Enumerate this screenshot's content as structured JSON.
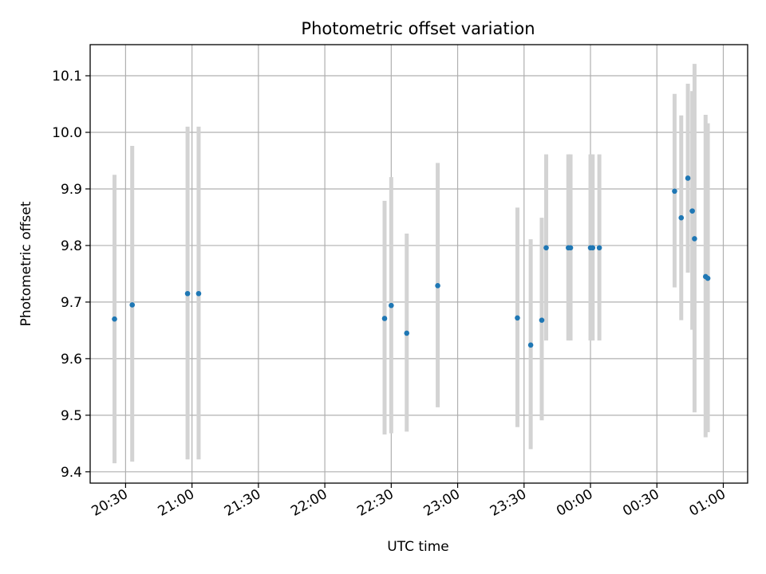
{
  "chart_data": {
    "type": "scatter",
    "title": "Photometric offset variation",
    "xlabel": "UTC time",
    "ylabel": "Photometric offset",
    "grid": true,
    "error_bar_color": "#d3d3d3",
    "point_color": "#1f77b4",
    "xlim": [
      "20:14",
      "01:11"
    ],
    "ylim": [
      9.38,
      10.155
    ],
    "x_ticks": [
      "20:30",
      "21:00",
      "21:30",
      "22:00",
      "22:30",
      "23:00",
      "23:30",
      "00:00",
      "00:30",
      "01:00"
    ],
    "y_ticks": [
      9.4,
      9.5,
      9.6,
      9.7,
      9.8,
      9.9,
      10.0,
      10.1
    ],
    "y_tick_labels": [
      "9.4",
      "9.5",
      "9.6",
      "9.7",
      "9.8",
      "9.9",
      "10.0",
      "10.1"
    ],
    "points": [
      {
        "time": "20:25",
        "y": 9.67,
        "ylow": 9.415,
        "yhigh": 9.925
      },
      {
        "time": "20:33",
        "y": 9.695,
        "ylow": 9.418,
        "yhigh": 9.976
      },
      {
        "time": "20:58",
        "y": 9.715,
        "ylow": 9.422,
        "yhigh": 10.01
      },
      {
        "time": "21:03",
        "y": 9.715,
        "ylow": 9.422,
        "yhigh": 10.01
      },
      {
        "time": "22:27",
        "y": 9.671,
        "ylow": 9.466,
        "yhigh": 9.879
      },
      {
        "time": "22:30",
        "y": 9.694,
        "ylow": 9.468,
        "yhigh": 9.921
      },
      {
        "time": "22:37",
        "y": 9.645,
        "ylow": 9.471,
        "yhigh": 9.821
      },
      {
        "time": "22:51",
        "y": 9.729,
        "ylow": 9.514,
        "yhigh": 9.946
      },
      {
        "time": "23:27",
        "y": 9.672,
        "ylow": 9.479,
        "yhigh": 9.867
      },
      {
        "time": "23:33",
        "y": 9.624,
        "ylow": 9.44,
        "yhigh": 9.811
      },
      {
        "time": "23:38",
        "y": 9.668,
        "ylow": 9.491,
        "yhigh": 9.849
      },
      {
        "time": "23:40",
        "y": 9.796,
        "ylow": 9.632,
        "yhigh": 9.961
      },
      {
        "time": "23:50",
        "y": 9.796,
        "ylow": 9.632,
        "yhigh": 9.961
      },
      {
        "time": "23:51",
        "y": 9.796,
        "ylow": 9.632,
        "yhigh": 9.961
      },
      {
        "time": "00:00",
        "y": 9.796,
        "ylow": 9.632,
        "yhigh": 9.961
      },
      {
        "time": "00:01",
        "y": 9.796,
        "ylow": 9.632,
        "yhigh": 9.961
      },
      {
        "time": "00:04",
        "y": 9.796,
        "ylow": 9.632,
        "yhigh": 9.961
      },
      {
        "time": "00:38",
        "y": 9.896,
        "ylow": 9.726,
        "yhigh": 10.068
      },
      {
        "time": "00:41",
        "y": 9.849,
        "ylow": 9.668,
        "yhigh": 10.03
      },
      {
        "time": "00:44",
        "y": 9.919,
        "ylow": 9.752,
        "yhigh": 10.086
      },
      {
        "time": "00:46",
        "y": 9.861,
        "ylow": 9.651,
        "yhigh": 10.073
      },
      {
        "time": "00:47",
        "y": 9.812,
        "ylow": 9.505,
        "yhigh": 10.121
      },
      {
        "time": "00:52",
        "y": 9.745,
        "ylow": 9.461,
        "yhigh": 10.031
      },
      {
        "time": "00:53",
        "y": 9.742,
        "ylow": 9.47,
        "yhigh": 10.016
      }
    ]
  }
}
